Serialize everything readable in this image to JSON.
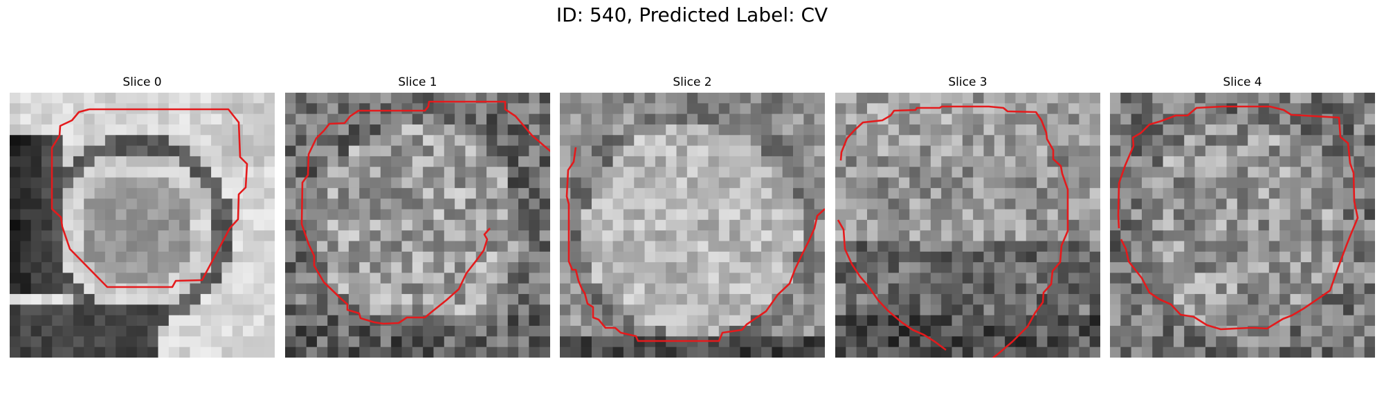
{
  "figure": {
    "title": "ID: 540, Predicted Label: CV"
  },
  "slices": [
    {
      "title": "Slice 0"
    },
    {
      "title": "Slice 1"
    },
    {
      "title": "Slice 2"
    },
    {
      "title": "Slice 3"
    },
    {
      "title": "Slice 4"
    }
  ],
  "colors": {
    "contour": "#e41a1c",
    "background": "#ffffff"
  }
}
